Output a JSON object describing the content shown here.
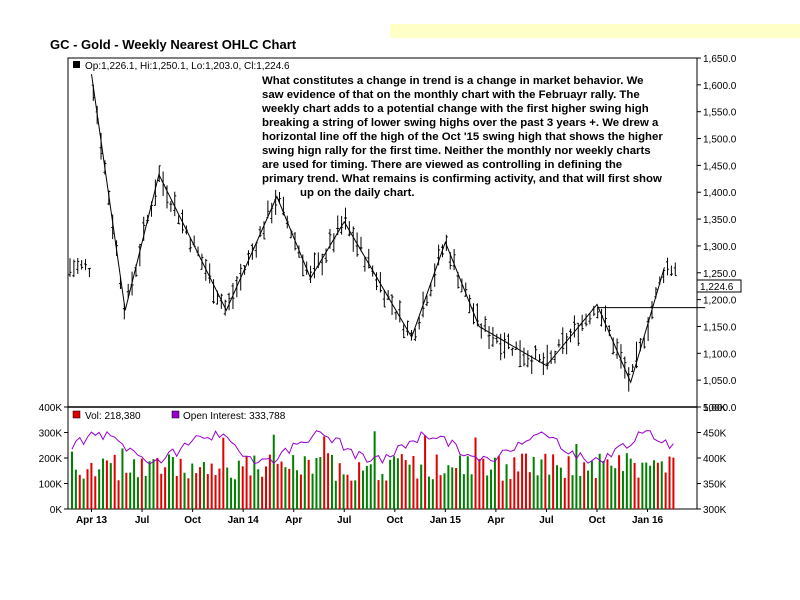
{
  "title": "GC - Gold - Weekly Nearest OHLC Chart",
  "price_legend": "Op:1,226.1, Hi:1,250.1, Lo:1,203.0, Cl:1,224.6",
  "last_price_label": "1,224.6",
  "volume_legend": "Vol: 218,380",
  "oi_legend": "Open Interest: 333,788",
  "annotation_lines": [
    "What constitutes a change in trend is a change in market behavior.  We",
    "saw evidence of that on the monthly chart with the Februayr rally.  The",
    "weekly chart adds to a potential change with the first higher swing high",
    "breaking a string of lower swing highs over the past 3 years +.  We drew a",
    "horizontal line off the high of the Oct '15 swing high that shows the higher",
    "swing hign rally for the first time.  Neither the monthly nor weekly charts",
    "are used for timing.  There are viewed as controlling in defining the",
    "primary trend.  What remains is confirming activity, and that will first show",
    "up on the daily chart."
  ],
  "colors": {
    "volume_up": "#008000",
    "volume_down": "#e00000",
    "open_interest": "#9900cc",
    "bars": "#000000",
    "banner": "#ffffc8"
  },
  "chart_data": [
    {
      "type": "ohlc",
      "title": "GC - Gold - Weekly Nearest OHLC Chart",
      "period": "weekly",
      "yaxis": {
        "side": "right",
        "ylim": [
          1000,
          1650
        ],
        "ticks": [
          "1,000.0",
          "1,050.0",
          "1,100.0",
          "1,150.0",
          "1,200.0",
          "1,250.0",
          "1,300.0",
          "1,350.0",
          "1,400.0",
          "1,450.0",
          "1,500.0",
          "1,550.0",
          "1,600.0",
          "1,650.0"
        ]
      },
      "xaxis": {
        "ticks": [
          "Apr 13",
          "Jul",
          "Oct",
          "Jan 14",
          "Apr",
          "Jul",
          "Oct",
          "Jan 15",
          "Apr",
          "Jul",
          "Oct",
          "Jan 16"
        ]
      },
      "swing_points": [
        {
          "date": "Apr 2013",
          "value": 1620
        },
        {
          "date": "Jun 2013",
          "value": 1180
        },
        {
          "date": "Aug 2013",
          "value": 1433
        },
        {
          "date": "Dec 2013",
          "value": 1180
        },
        {
          "date": "Mar 2014",
          "value": 1392
        },
        {
          "date": "May 2014",
          "value": 1240
        },
        {
          "date": "Jul 2014",
          "value": 1345
        },
        {
          "date": "Nov 2014",
          "value": 1130
        },
        {
          "date": "Jan 2015",
          "value": 1307
        },
        {
          "date": "Mar 2015",
          "value": 1150
        },
        {
          "date": "Jul 2015",
          "value": 1077
        },
        {
          "date": "Oct 2015",
          "value": 1191
        },
        {
          "date": "Dec 2015",
          "value": 1046
        },
        {
          "date": "Feb 2016",
          "value": 1260
        }
      ],
      "horizontal_level": {
        "value": 1185,
        "from": "Oct 2015",
        "to": "Mar 2016"
      },
      "last_bar": {
        "open": 1226.1,
        "high": 1250.1,
        "low": 1203.0,
        "close": 1224.6
      }
    },
    {
      "type": "bar",
      "title": "Volume",
      "yaxis": {
        "side": "left",
        "ylim": [
          0,
          400000
        ],
        "ticks": [
          "0K",
          "100K",
          "200K",
          "300K",
          "400K"
        ]
      },
      "last_volume": 218380
    },
    {
      "type": "line",
      "title": "Open Interest",
      "yaxis": {
        "side": "right",
        "ylim": [
          300000,
          500000
        ],
        "ticks": [
          "300K",
          "350K",
          "400K",
          "450K",
          "500K"
        ]
      },
      "last_open_interest": 333788
    }
  ]
}
